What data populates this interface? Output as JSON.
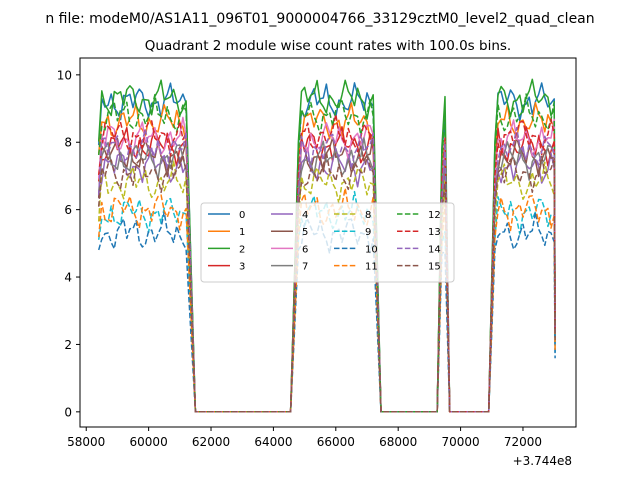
{
  "figure": {
    "suptitle": "n file: modeM0/AS1A11_096T01_9000004766_33129cztM0_level2_quad_clean",
    "offset_label": "+3.744e8"
  },
  "chart_data": {
    "type": "line",
    "title": "Quadrant 2 module wise count rates with 100.0s bins.",
    "xlabel": "",
    "ylabel": "",
    "x_offset": 374400000,
    "xlim": [
      57800,
      73700
    ],
    "ylim": [
      -0.45,
      10.5
    ],
    "xticks": [
      58000,
      60000,
      62000,
      64000,
      66000,
      68000,
      70000,
      72000
    ],
    "yticks": [
      0,
      2,
      4,
      6,
      8,
      10
    ],
    "grid": false,
    "legend": {
      "placement": "center",
      "columns": 4
    },
    "segments": [
      {
        "x_start": 58400,
        "x_end": 61200,
        "fall_end": 61500,
        "rise_start": null
      },
      {
        "x_start": 64800,
        "x_end": 67200,
        "fall_end": 67450,
        "rise_start": 64550
      },
      {
        "x_start": 69400,
        "x_end": 69500,
        "fall_end": 69650,
        "rise_start": 69250
      },
      {
        "x_start": 71100,
        "x_end": 73000,
        "fall_end": null,
        "rise_start": 70900
      }
    ],
    "series": [
      {
        "name": "0",
        "color": "#1f77b4",
        "dash": "solid",
        "level": 9.2
      },
      {
        "name": "1",
        "color": "#ff7f0e",
        "dash": "solid",
        "level": 8.6
      },
      {
        "name": "2",
        "color": "#2ca02c",
        "dash": "solid",
        "level": 9.3
      },
      {
        "name": "3",
        "color": "#d62728",
        "dash": "solid",
        "level": 7.9
      },
      {
        "name": "4",
        "color": "#9467bd",
        "dash": "solid",
        "level": 7.3
      },
      {
        "name": "5",
        "color": "#8c564b",
        "dash": "solid",
        "level": 7.6
      },
      {
        "name": "6",
        "color": "#e377c2",
        "dash": "solid",
        "level": 8.1
      },
      {
        "name": "7",
        "color": "#7f7f7f",
        "dash": "solid",
        "level": 7.5
      },
      {
        "name": "8",
        "color": "#bcbd22",
        "dash": "dashed",
        "level": 6.8
      },
      {
        "name": "9",
        "color": "#17becf",
        "dash": "dashed",
        "level": 5.9
      },
      {
        "name": "10",
        "color": "#1f77b4",
        "dash": "dashed",
        "level": 5.3
      },
      {
        "name": "11",
        "color": "#ff7f0e",
        "dash": "dashed",
        "level": 6.0
      },
      {
        "name": "12",
        "color": "#2ca02c",
        "dash": "dashed",
        "level": 8.8
      },
      {
        "name": "13",
        "color": "#d62728",
        "dash": "dashed",
        "level": 8.2
      },
      {
        "name": "14",
        "color": "#9467bd",
        "dash": "dashed",
        "level": 7.8
      },
      {
        "name": "15",
        "color": "#8c564b",
        "dash": "dashed",
        "level": 7.1
      }
    ]
  }
}
